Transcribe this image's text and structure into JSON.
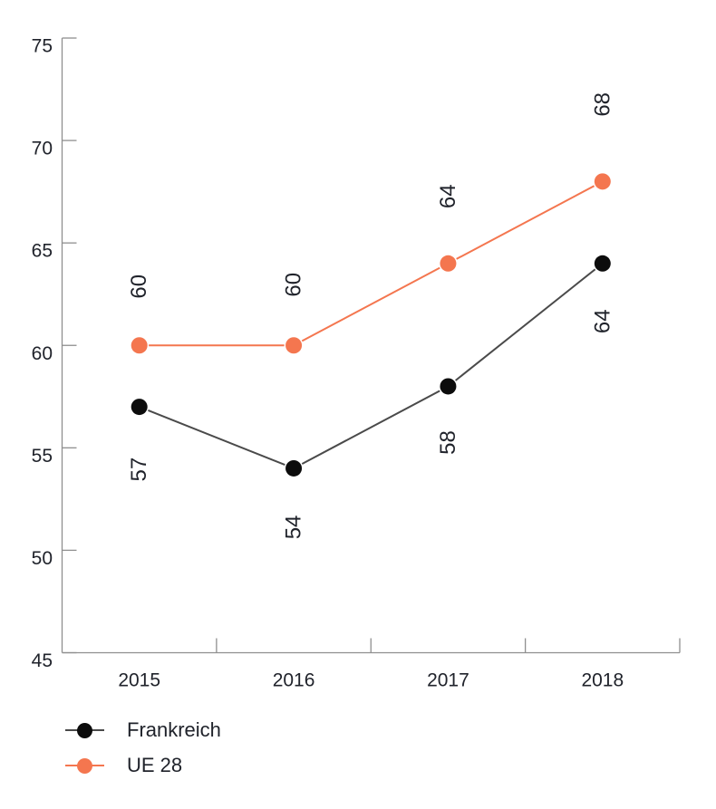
{
  "chart_data": {
    "type": "line",
    "categories": [
      "2015",
      "2016",
      "2017",
      "2018"
    ],
    "series": [
      {
        "name": "Frankreich",
        "values": [
          57,
          54,
          58,
          64
        ],
        "marker_color": "#0c0c0c",
        "line_color": "#4a4a4a",
        "label_side": "below",
        "label_offsets": [
          69,
          65,
          62,
          64
        ]
      },
      {
        "name": "UE 28",
        "values": [
          60,
          60,
          64,
          68
        ],
        "marker_color": "#f4764f",
        "line_color": "#f4764f",
        "label_side": "above",
        "label_offsets": [
          -65,
          -67,
          -74,
          -85
        ]
      }
    ],
    "ylim": [
      45,
      75
    ],
    "yticks": [
      45,
      50,
      55,
      60,
      65,
      70,
      75
    ],
    "grid": false,
    "legend_position": "bottom-left",
    "title": "",
    "xlabel": "",
    "ylabel": ""
  },
  "style": {
    "text_color": "#20232b",
    "axis_color": "#8f8f8f",
    "background": "#ffffff"
  }
}
